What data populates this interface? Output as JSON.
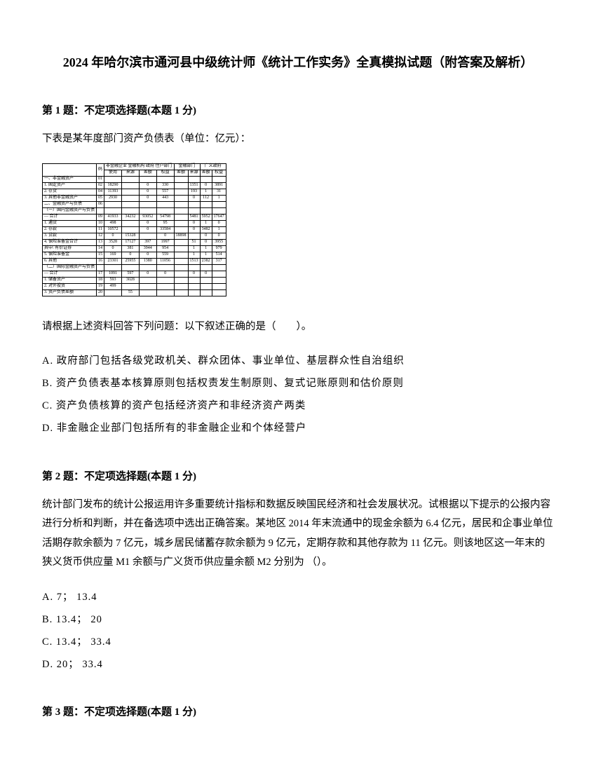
{
  "title": "2024 年哈尔滨市通河县中级统计师《统计工作实务》全真模拟试题（附答案及解析）",
  "q1": {
    "header": "第 1 题：不定项选择题(本题 1 分)",
    "intro": "下表是某年度部门资产负债表（单位：亿元）：",
    "prompt": "请根据上述资料回答下列问题：以下叙述正确的是（　　）。",
    "optA": "A. 政府部门包括各级党政机关、群众团体、事业单位、基层群众性自治组织",
    "optB": "B. 资产负债表基本核算原则包括权责发生制原则、复式记账原则和估价原则",
    "optC": "C. 资产负债核算的资产包括经济资产和非经济资产两类",
    "optD": "D. 非金融企业部门包括所有的非金融企业和个体经营户"
  },
  "q2": {
    "header": "第 2 题：不定项选择题(本题 1 分)",
    "body": "统计部门发布的统计公报运用许多重要统计指标和数据反映国民经济和社会发展状况。试根据以下提示的公报内容进行分析和判断，并在备选项中选出正确答案。某地区 2014 年末流通中的现金余额为 6.4 亿元，居民和企事业单位活期存款余额为 7 亿元，城乡居民储蓄存款余额为 9 亿元，定期存款和其他存款为 11 亿元。则该地区这一年末的狭义货币供应量 M1 余额与广义货币供应量余额 M2 分别为 （）。",
    "optA": "A. 7； 13.4",
    "optB": "B. 13.4； 20",
    "optC": "C. 13.4； 33.4",
    "optD": "D. 20； 33.4"
  },
  "q3": {
    "header": "第 3 题：不定项选择题(本题 1 分)"
  },
  "table": {
    "group_a": "非金融企业 金融机构 政府 住户部门",
    "group_b": "金融部门",
    "group_c": "广义政府",
    "sub_use": "使用",
    "sub_src": "来源",
    "sub_bal": "差额",
    "sub_eq": "权益",
    "rows": [
      {
        "label": "一、非金融资产",
        "code": "01",
        "c": [
          "",
          "",
          "",
          "",
          "",
          "",
          "",
          ""
        ]
      },
      {
        "label": "1. 固定资产",
        "code": "02",
        "c": [
          "18290",
          "",
          "0",
          "330",
          "",
          "1351",
          "0",
          "3891",
          "",
          "0"
        ]
      },
      {
        "label": "2. 存货",
        "code": "04",
        "c": [
          "11393",
          "",
          "0",
          "557",
          "",
          "193",
          "1",
          "31",
          "",
          "0"
        ]
      },
      {
        "label": "3. 其他非金融资产",
        "code": "05",
        "c": [
          "2930",
          "",
          "0",
          "443",
          "",
          "0",
          "112",
          "1",
          "",
          "0"
        ]
      },
      {
        "label": "二、金融资产与负债",
        "code": "06",
        "c": [
          "",
          "",
          "",
          "",
          "",
          "",
          "",
          "",
          "",
          ""
        ]
      },
      {
        "label": "（一）国内金融资产与负债",
        "code": "",
        "c": [
          "",
          "",
          "",
          "",
          "",
          "",
          "",
          "",
          "",
          ""
        ]
      },
      {
        "label": " — 合计",
        "code": "09",
        "c": [
          "41933",
          "34232",
          "93052",
          "54798",
          "",
          "5481",
          "5952",
          "17647",
          "",
          "0"
        ]
      },
      {
        "label": "1. 通货",
        "code": "10",
        "c": [
          "498",
          "",
          "0",
          "95",
          "",
          "0",
          "1",
          "0",
          "2113",
          "",
          "0"
        ]
      },
      {
        "label": "2. 存款",
        "code": "11",
        "c": [
          "10572",
          "",
          "0",
          "33584",
          "",
          "0",
          "3482",
          "1",
          "9322",
          "",
          ""
        ]
      },
      {
        "label": "3. 贷款",
        "code": "12",
        "c": [
          "0",
          "15328",
          "",
          "0",
          "18898",
          "",
          "0",
          "0",
          "0",
          "0",
          "",
          "2277"
        ]
      },
      {
        "label": "4. 保险准备金合计",
        "code": "13",
        "c": [
          "3528",
          "17127",
          "397",
          "1997",
          "",
          "51",
          "0",
          "3955",
          "",
          "0"
        ]
      },
      {
        "label": " 其中: 有价证券",
        "code": "14",
        "c": [
          "0",
          "381",
          "3944",
          "954",
          "",
          "1",
          "1",
          "979",
          "",
          "0"
        ]
      },
      {
        "label": "5. 保险准备金",
        "code": "15",
        "c": [
          "169",
          "0",
          "0",
          "559",
          "",
          "1",
          "1",
          "514",
          "",
          "0"
        ]
      },
      {
        "label": "6. 其他",
        "code": "16",
        "c": [
          "23301",
          "25955",
          "1380",
          "11056",
          "",
          "1513",
          "2382",
          "317",
          "",
          "0"
        ]
      },
      {
        "label": "（二）国际金融资产与负债",
        "code": "",
        "c": [
          "",
          "",
          "",
          "",
          "",
          "",
          "",
          "",
          "",
          ""
        ]
      },
      {
        "label": " — 合计",
        "code": "17",
        "c": [
          "1091",
          "597",
          "0",
          "0",
          "",
          "0",
          "0",
          "",
          "",
          "0"
        ]
      },
      {
        "label": "1. 储备资产",
        "code": "18",
        "c": [
          "593",
          "3028",
          "",
          "",
          "",
          "",
          "",
          "",
          "",
          ""
        ]
      },
      {
        "label": "2. 对外投资",
        "code": "19",
        "c": [
          "499",
          "",
          "",
          "",
          "",
          "",
          "",
          "",
          "",
          ""
        ]
      },
      {
        "label": "3. 资产负债差额",
        "code": "20",
        "c": [
          "",
          "55",
          "",
          "",
          "",
          "",
          "",
          "",
          "",
          ""
        ]
      }
    ]
  }
}
